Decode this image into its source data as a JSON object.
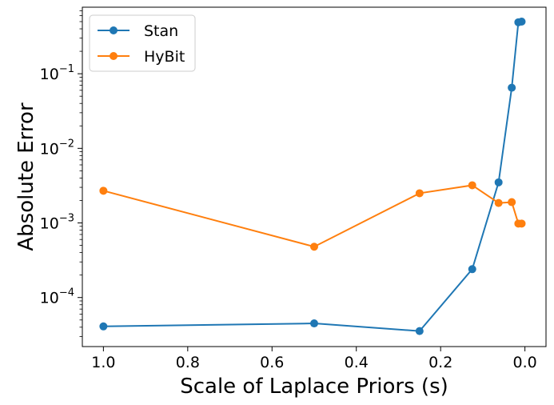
{
  "chart_data": {
    "type": "line",
    "title": "",
    "xlabel": "Scale of Laplace Priors (s)",
    "ylabel": "Absolute Error",
    "x_inverted": true,
    "xlim": [
      1.05,
      -0.05
    ],
    "ylim": [
      2.2e-05,
      0.78
    ],
    "y_scale": "log",
    "x_ticks": [
      1.0,
      0.8,
      0.6,
      0.4,
      0.2,
      0.0
    ],
    "x_tick_labels": [
      "1.0",
      "0.8",
      "0.6",
      "0.4",
      "0.2",
      "0.0"
    ],
    "y_major_ticks": [
      0.0001,
      0.001,
      0.01,
      0.1
    ],
    "y_tick_labels": [
      {
        "base": "10",
        "exp": "−4"
      },
      {
        "base": "10",
        "exp": "−3"
      },
      {
        "base": "10",
        "exp": "−2"
      },
      {
        "base": "10",
        "exp": "−1"
      }
    ],
    "grid": false,
    "legend_position": "top-left",
    "series": [
      {
        "name": "Stan",
        "color": "#1f77b4",
        "x": [
          1.0,
          0.5,
          0.25,
          0.125,
          0.0625,
          0.03125,
          0.015625,
          0.0078125
        ],
        "y": [
          4.1e-05,
          4.5e-05,
          3.55e-05,
          0.00024,
          0.0035,
          0.065,
          0.49,
          0.5
        ]
      },
      {
        "name": "HyBit",
        "color": "#ff7f0e",
        "x": [
          1.0,
          0.5,
          0.25,
          0.125,
          0.0625,
          0.03125,
          0.015625,
          0.0078125
        ],
        "y": [
          0.0027,
          0.00048,
          0.0025,
          0.0032,
          0.00185,
          0.0019,
          0.00098,
          0.00098
        ]
      }
    ]
  }
}
